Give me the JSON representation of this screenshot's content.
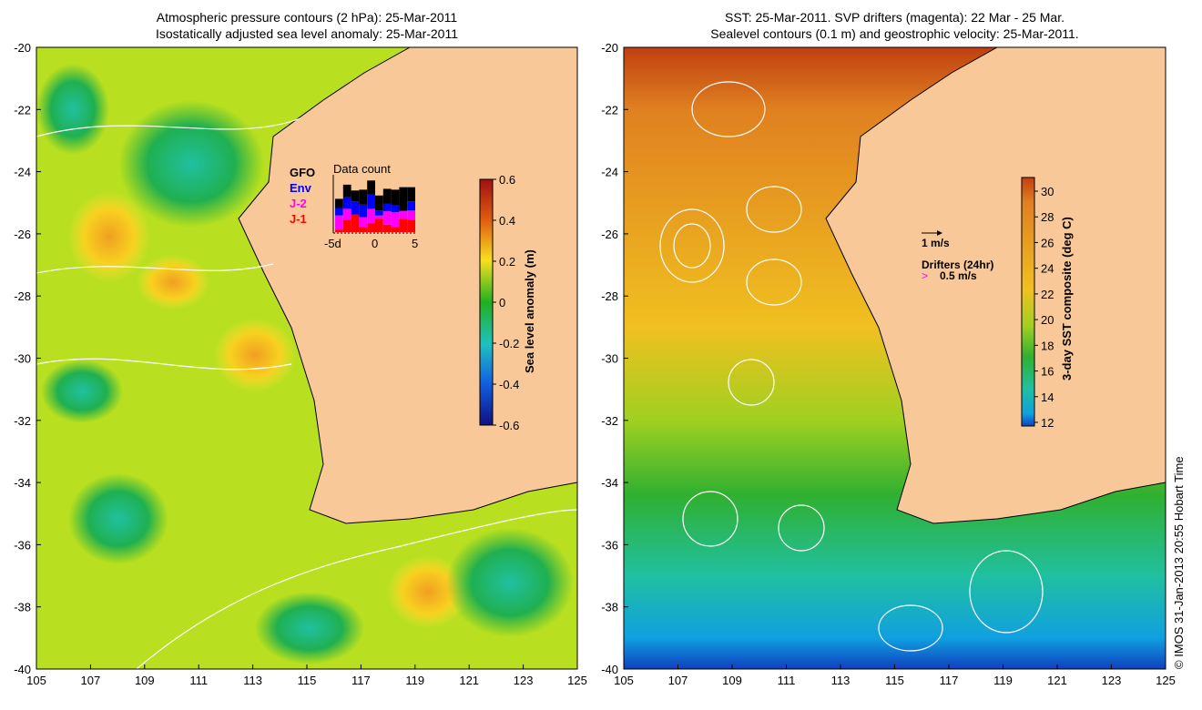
{
  "left_panel": {
    "title_line1": "Atmospheric pressure contours (2 hPa): 25-Mar-2011",
    "title_line2": "Isostatically adjusted sea level anomaly: 25-Mar-2011",
    "colorbar": {
      "label": "Sea level anomaly (m)",
      "ticks": [
        "0.6",
        "0.4",
        "0.2",
        "0",
        "-0.2",
        "-0.4",
        "-0.6"
      ]
    },
    "inset": {
      "title": "Data count",
      "legend": [
        {
          "label": "GFO",
          "color": "#000000"
        },
        {
          "label": "Env",
          "color": "#0000ff"
        },
        {
          "label": "J-2",
          "color": "#ff00ff"
        },
        {
          "label": "J-1",
          "color": "#ff0000"
        }
      ],
      "xticks": [
        "-5d",
        "0",
        "5"
      ]
    }
  },
  "right_panel": {
    "title_line1": "SST: 25-Mar-2011. SVP drifters (magenta): 22 Mar - 25 Mar.",
    "title_line2": "Sealevel contours (0.1 m) and geostrophic velocity: 25-Mar-2011.",
    "colorbar": {
      "label": "3-day SST composite (deg C)",
      "ticks": [
        "30",
        "28",
        "26",
        "24",
        "22",
        "20",
        "18",
        "16",
        "14",
        "12"
      ]
    },
    "velocity_scale": "1 m/s",
    "drifters_label": "Drifters (24hr)",
    "drifters_scale": "0.5 m/s"
  },
  "axes": {
    "lat_ticks": [
      "-20",
      "-22",
      "-24",
      "-26",
      "-28",
      "-30",
      "-32",
      "-34",
      "-36",
      "-38",
      "-40"
    ],
    "lon_ticks": [
      "105",
      "107",
      "109",
      "111",
      "113",
      "115",
      "117",
      "119",
      "121",
      "123",
      "125"
    ]
  },
  "credit": "© IMOS 31-Jan-2013 20:55 Hobart Time",
  "chart_data": {
    "type": "bar",
    "title": "Data count",
    "stacked": true,
    "categories": [
      "-5",
      "-4",
      "-3",
      "-2",
      "-1",
      "0",
      "1",
      "2",
      "3",
      "4"
    ],
    "series": [
      {
        "name": "J-1",
        "color": "#ff0000",
        "values": [
          3,
          15,
          21,
          6,
          11,
          16,
          9,
          6,
          16,
          15
        ]
      },
      {
        "name": "J-2",
        "color": "#ff00ff",
        "values": [
          17,
          13,
          0,
          12,
          17,
          4,
          16,
          18,
          9,
          11
        ]
      },
      {
        "name": "Env",
        "color": "#0000ff",
        "values": [
          9,
          14,
          16,
          15,
          17,
          6,
          9,
          8,
          1,
          11
        ]
      },
      {
        "name": "GFO",
        "color": "#000000",
        "values": [
          11,
          15,
          13,
          18,
          17,
          18,
          18,
          19,
          28,
          17
        ]
      }
    ]
  }
}
